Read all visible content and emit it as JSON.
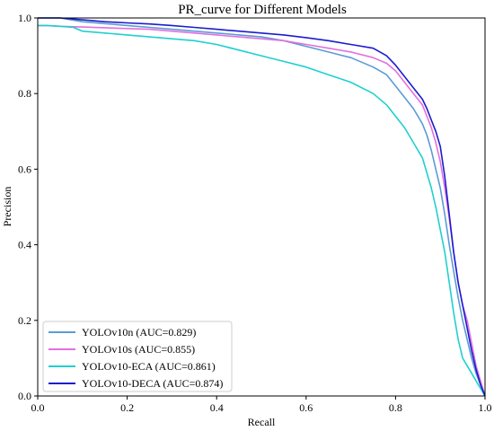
{
  "chart_data": {
    "type": "line",
    "title": "PR_curve for Different Models",
    "xlabel": "Recall",
    "ylabel": "Precision",
    "xlim": [
      0,
      1
    ],
    "ylim": [
      0,
      1
    ],
    "xticks": [
      "0.0",
      "0.2",
      "0.4",
      "0.6",
      "0.8",
      "1.0"
    ],
    "yticks": [
      "0.0",
      "0.2",
      "0.4",
      "0.6",
      "0.8",
      "1.0"
    ],
    "grid": false,
    "legend_position": "lower-left",
    "series": [
      {
        "name": "YOLOv10n (AUC=0.829)",
        "color": "#5b9bd5",
        "x": [
          0.0,
          0.02,
          0.05,
          0.1,
          0.15,
          0.2,
          0.25,
          0.3,
          0.35,
          0.4,
          0.45,
          0.5,
          0.55,
          0.6,
          0.65,
          0.7,
          0.75,
          0.78,
          0.8,
          0.82,
          0.84,
          0.86,
          0.87,
          0.88,
          0.89,
          0.9,
          0.91,
          0.92,
          0.93,
          0.94,
          0.95,
          0.96,
          0.97,
          0.98,
          0.99,
          1.0
        ],
        "y": [
          1.0,
          1.0,
          1.0,
          0.99,
          0.985,
          0.98,
          0.975,
          0.97,
          0.965,
          0.96,
          0.955,
          0.95,
          0.94,
          0.925,
          0.91,
          0.895,
          0.87,
          0.85,
          0.82,
          0.79,
          0.76,
          0.72,
          0.69,
          0.65,
          0.6,
          0.55,
          0.48,
          0.4,
          0.33,
          0.26,
          0.2,
          0.15,
          0.1,
          0.06,
          0.03,
          0.0
        ]
      },
      {
        "name": "YOLOv10s (AUC=0.855)",
        "color": "#e36fe0",
        "x": [
          0.0,
          0.02,
          0.05,
          0.1,
          0.15,
          0.2,
          0.25,
          0.3,
          0.35,
          0.4,
          0.45,
          0.5,
          0.55,
          0.6,
          0.65,
          0.7,
          0.75,
          0.78,
          0.8,
          0.82,
          0.84,
          0.86,
          0.87,
          0.88,
          0.89,
          0.9,
          0.91,
          0.92,
          0.93,
          0.94,
          0.95,
          0.96,
          0.97,
          0.98,
          0.99,
          1.0
        ],
        "y": [
          0.98,
          0.98,
          0.978,
          0.976,
          0.974,
          0.972,
          0.97,
          0.965,
          0.96,
          0.955,
          0.95,
          0.945,
          0.94,
          0.93,
          0.92,
          0.91,
          0.895,
          0.88,
          0.86,
          0.83,
          0.8,
          0.77,
          0.74,
          0.71,
          0.67,
          0.62,
          0.55,
          0.47,
          0.38,
          0.3,
          0.24,
          0.2,
          0.14,
          0.08,
          0.04,
          0.0
        ]
      },
      {
        "name": "YOLOv10-ECA (AUC=0.861)",
        "color": "#1fd0cf",
        "x": [
          0.0,
          0.02,
          0.05,
          0.08,
          0.09,
          0.1,
          0.15,
          0.2,
          0.25,
          0.3,
          0.35,
          0.4,
          0.45,
          0.5,
          0.55,
          0.6,
          0.65,
          0.7,
          0.75,
          0.78,
          0.8,
          0.82,
          0.84,
          0.86,
          0.87,
          0.88,
          0.89,
          0.9,
          0.91,
          0.92,
          0.93,
          0.94,
          0.95,
          0.96,
          0.97,
          0.98,
          0.99,
          1.0
        ],
        "y": [
          0.98,
          0.98,
          0.978,
          0.975,
          0.97,
          0.965,
          0.96,
          0.955,
          0.95,
          0.945,
          0.94,
          0.93,
          0.915,
          0.9,
          0.885,
          0.87,
          0.85,
          0.83,
          0.8,
          0.77,
          0.74,
          0.71,
          0.67,
          0.63,
          0.59,
          0.55,
          0.5,
          0.44,
          0.38,
          0.3,
          0.22,
          0.15,
          0.1,
          0.08,
          0.06,
          0.04,
          0.02,
          0.0
        ]
      },
      {
        "name": "YOLOv10-DECA (AUC=0.874)",
        "color": "#1c1ccf",
        "x": [
          0.0,
          0.02,
          0.05,
          0.1,
          0.15,
          0.2,
          0.25,
          0.3,
          0.35,
          0.4,
          0.45,
          0.5,
          0.55,
          0.6,
          0.65,
          0.7,
          0.75,
          0.78,
          0.8,
          0.82,
          0.84,
          0.86,
          0.87,
          0.88,
          0.89,
          0.9,
          0.91,
          0.92,
          0.93,
          0.94,
          0.95,
          0.96,
          0.97,
          0.98,
          0.99,
          1.0
        ],
        "y": [
          1.0,
          1.0,
          1.0,
          0.995,
          0.99,
          0.987,
          0.984,
          0.98,
          0.975,
          0.97,
          0.965,
          0.96,
          0.955,
          0.948,
          0.94,
          0.93,
          0.92,
          0.9,
          0.875,
          0.845,
          0.815,
          0.785,
          0.76,
          0.73,
          0.7,
          0.66,
          0.58,
          0.48,
          0.38,
          0.3,
          0.24,
          0.18,
          0.12,
          0.07,
          0.03,
          0.0
        ]
      }
    ]
  }
}
